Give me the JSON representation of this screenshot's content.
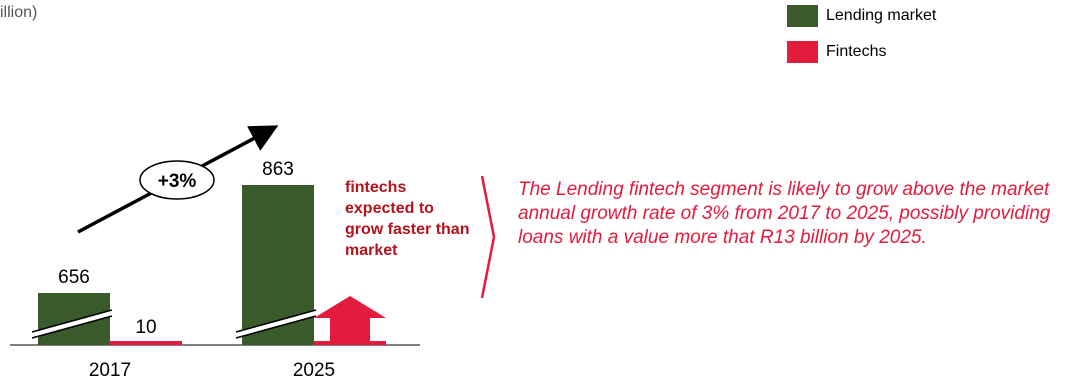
{
  "unit_label": "illion)",
  "legend": [
    {
      "label": "Lending market",
      "color": "#3b5a2b"
    },
    {
      "label": "Fintechs",
      "color": "#e31b3c"
    }
  ],
  "chart_data": {
    "type": "bar",
    "categories": [
      "2017",
      "2025"
    ],
    "series": [
      {
        "name": "Lending market",
        "values": [
          656,
          863
        ],
        "color": "#3b5a2b"
      },
      {
        "name": "Fintechs",
        "values": [
          10,
          null
        ],
        "color": "#e31b3c"
      }
    ],
    "axis_break": true,
    "growth_label": "+3%",
    "fintech_2025_indicator": "upward arrow"
  },
  "callout": "fintechs expected to grow faster than market",
  "summary": "The Lending fintech segment  is likely to grow above the market annual growth rate of 3% from 2017 to 2025, possibly providing loans with a value more that R13 billion by 2025."
}
